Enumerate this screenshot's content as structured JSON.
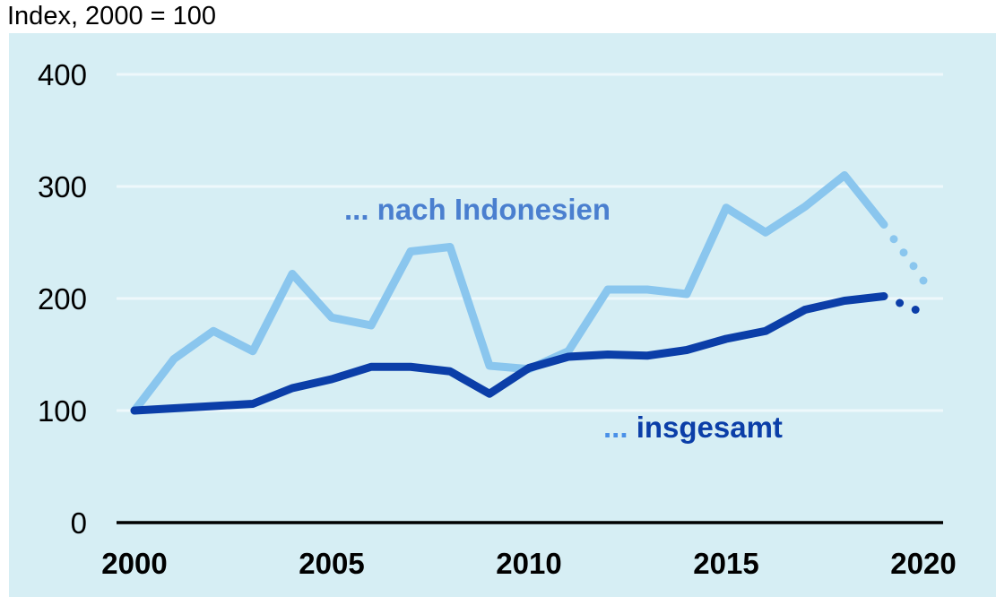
{
  "chart_data": {
    "type": "line",
    "title": "",
    "unit_label": "Index, 2000 = 100",
    "xlabel": "",
    "ylabel": "Index, 2000 = 100",
    "ylim": [
      0,
      400
    ],
    "yticks": [
      0,
      100,
      200,
      300,
      400
    ],
    "xticks": [
      2000,
      2005,
      2010,
      2015,
      2020
    ],
    "grid": true,
    "x": [
      2000,
      2001,
      2002,
      2003,
      2004,
      2005,
      2006,
      2007,
      2008,
      2009,
      2010,
      2011,
      2012,
      2013,
      2014,
      2015,
      2016,
      2017,
      2018,
      2019
    ],
    "series": [
      {
        "name": "... nach Indonesien",
        "color": "#8ac6ee",
        "values": [
          100,
          146,
          171,
          153,
          222,
          183,
          176,
          242,
          246,
          140,
          137,
          153,
          208,
          208,
          204,
          281,
          259,
          282,
          310,
          266
        ],
        "forecast": {
          "style": "dotted",
          "x": [
            2019.25,
            2019.5,
            2019.75,
            2020
          ],
          "values": [
            253,
            241,
            229,
            216
          ]
        }
      },
      {
        "name": "... insgesamt",
        "color": "#0b3ea8",
        "values": [
          100,
          102,
          104,
          106,
          120,
          128,
          139,
          139,
          135,
          115,
          138,
          148,
          150,
          149,
          154,
          164,
          171,
          190,
          198,
          202
        ],
        "forecast": {
          "style": "dotted",
          "x": [
            2019.4,
            2019.8
          ],
          "values": [
            196,
            190
          ]
        }
      }
    ],
    "annotations": [
      {
        "text": "... nach Indonesien",
        "color": "#4a7fcf"
      },
      {
        "text": "insgesamt",
        "prefix": "...",
        "prefix_color": "#4a90e8",
        "color": "#0b3ea8"
      }
    ]
  }
}
